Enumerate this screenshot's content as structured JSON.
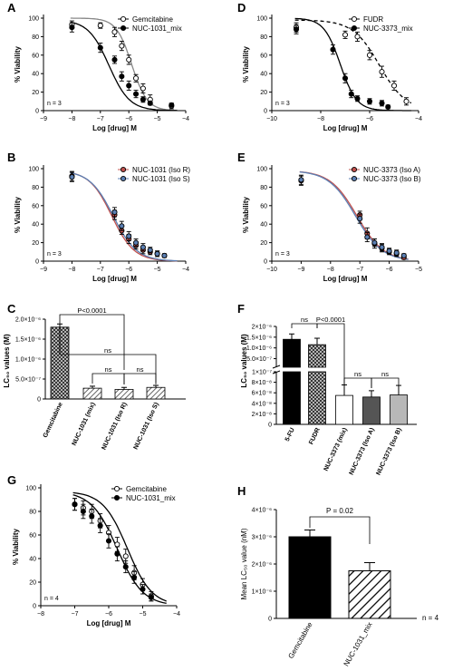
{
  "chart_data": [
    {
      "panel": "A",
      "type": "line",
      "xlabel": "Log [drug] M",
      "ylabel": "% Viability",
      "xlim": [
        -9,
        -4
      ],
      "ylim": [
        0,
        100
      ],
      "xticks": [
        -9,
        -8,
        -7,
        -6,
        -5,
        -4
      ],
      "yticks": [
        0,
        20,
        40,
        60,
        80,
        100
      ],
      "n_label": "n = 3",
      "legend": "top-right",
      "series": [
        {
          "name": "Gemcitabine",
          "marker": "open",
          "x": [
            -8,
            -7,
            -6.5,
            -6.25,
            -6,
            -5.75,
            -5.5,
            -5.25,
            -4.5
          ],
          "y": [
            93,
            92,
            85,
            70,
            55,
            35,
            24,
            12,
            5
          ],
          "err": [
            4,
            3,
            5,
            5,
            5,
            4,
            5,
            5,
            3
          ]
        },
        {
          "name": "NUC-1031_mix",
          "marker": "filled",
          "x": [
            -8,
            -7,
            -6.5,
            -6.25,
            -6,
            -5.75,
            -5.5,
            -5.25,
            -4.5
          ],
          "y": [
            90,
            68,
            55,
            37,
            27,
            18,
            12,
            8,
            6
          ],
          "err": [
            5,
            5,
            4,
            5,
            5,
            4,
            3,
            2,
            2
          ]
        }
      ]
    },
    {
      "panel": "D",
      "type": "line",
      "xlabel": "Log [drug] M",
      "ylabel": "% Viability",
      "xlim": [
        -10,
        -4
      ],
      "ylim": [
        0,
        100
      ],
      "xticks": [
        -10,
        -8,
        -6,
        -4
      ],
      "yticks": [
        0,
        20,
        40,
        60,
        80,
        100
      ],
      "n_label": "n = 3",
      "legend": "top-right",
      "series": [
        {
          "name": "FUDR",
          "marker": "open",
          "x": [
            -9,
            -7,
            -6.5,
            -6,
            -5.5,
            -5,
            -4.5
          ],
          "y": [
            90,
            82,
            80,
            60,
            42,
            27,
            10
          ],
          "err": [
            5,
            4,
            5,
            5,
            6,
            5,
            4
          ]
        },
        {
          "name": "NUC-3373_mix",
          "marker": "filled",
          "x": [
            -9,
            -7.5,
            -7,
            -6.75,
            -6.5,
            -6,
            -5.5,
            -5.25
          ],
          "y": [
            88,
            66,
            35,
            18,
            13,
            10,
            8,
            4
          ],
          "err": [
            5,
            5,
            5,
            4,
            3,
            3,
            3,
            2
          ]
        }
      ]
    },
    {
      "panel": "B",
      "type": "line",
      "xlabel": "Log [drug] M",
      "ylabel": "% Viability",
      "xlim": [
        -9,
        -4
      ],
      "ylim": [
        0,
        100
      ],
      "xticks": [
        -9,
        -8,
        -7,
        -6,
        -5,
        -4
      ],
      "yticks": [
        0,
        20,
        40,
        60,
        80,
        100
      ],
      "n_label": "n = 3",
      "legend": "top-right",
      "series": [
        {
          "name": "NUC-1031 (Iso R)",
          "marker": "red",
          "color": "#c0504d",
          "x": [
            -8,
            -6.5,
            -6.25,
            -6,
            -5.75,
            -5.5,
            -5.25,
            -5,
            -4.75
          ],
          "y": [
            92,
            50,
            33,
            24,
            17,
            12,
            10,
            8,
            6
          ],
          "err": [
            5,
            5,
            4,
            5,
            4,
            4,
            3,
            3,
            2
          ]
        },
        {
          "name": "NUC-1031 (Iso S)",
          "marker": "blue",
          "color": "#5b7fb3",
          "x": [
            -8,
            -6.5,
            -6.25,
            -6,
            -5.75,
            -5.5,
            -5.25,
            -5,
            -4.75
          ],
          "y": [
            91,
            53,
            38,
            27,
            20,
            15,
            12,
            8,
            6
          ],
          "err": [
            5,
            5,
            5,
            5,
            4,
            4,
            3,
            3,
            2
          ]
        }
      ]
    },
    {
      "panel": "E",
      "type": "line",
      "xlabel": "Log [drug] M",
      "ylabel": "% Viability",
      "xlim": [
        -10,
        -5
      ],
      "ylim": [
        0,
        100
      ],
      "xticks": [
        -10,
        -9,
        -8,
        -7,
        -6,
        -5
      ],
      "yticks": [
        0,
        20,
        40,
        60,
        80,
        100
      ],
      "n_label": "n = 3",
      "legend": "top-right",
      "series": [
        {
          "name": "NUC-3373 (Iso A)",
          "marker": "red",
          "color": "#c0504d",
          "x": [
            -9,
            -7,
            -6.75,
            -6.5,
            -6.25,
            -6,
            -5.75,
            -5.5
          ],
          "y": [
            87,
            50,
            30,
            19,
            14,
            10,
            8,
            4
          ],
          "err": [
            5,
            4,
            6,
            5,
            4,
            3,
            3,
            2
          ]
        },
        {
          "name": "NUC-3373 (Iso B)",
          "marker": "blue",
          "color": "#5b7fb3",
          "x": [
            -9,
            -7,
            -6.75,
            -6.5,
            -6.25,
            -6,
            -5.75,
            -5.5
          ],
          "y": [
            88,
            46,
            26,
            20,
            15,
            11,
            9,
            6
          ],
          "err": [
            5,
            5,
            5,
            4,
            4,
            3,
            3,
            2
          ]
        }
      ]
    },
    {
      "panel": "C",
      "type": "bar",
      "ylabel": "LC₅₀ values (M)",
      "categories": [
        "Gemcitabine",
        "NUC-1031 (mix)",
        "NUC-1031 (Iso R)",
        "NUC-1031 (Iso S)"
      ],
      "values": [
        1.8e-06,
        2.7e-07,
        2.4e-07,
        2.9e-07
      ],
      "err": [
        8e-08,
        5e-08,
        5e-08,
        5e-08
      ],
      "patterns": [
        "crosshatch",
        "diagonal",
        "diagonal",
        "diagonal"
      ],
      "ylim": [
        0,
        2e-06
      ],
      "yticks": [
        "0",
        "5.0×10⁻⁷",
        "1.0×10⁻⁶",
        "1.5×10⁻⁶",
        "2.0×10⁻⁶"
      ],
      "annotations": [
        "P<0.0001",
        "ns",
        "ns",
        "ns"
      ]
    },
    {
      "panel": "F",
      "type": "bar",
      "ylabel": "LC₅₀ values (M)",
      "scale": "broken",
      "categories": [
        "5-FU",
        "FUDR",
        "NUC-3373 (mix)",
        "NUC-3373 (Iso A)",
        "NUC-3373 (Iso B)"
      ],
      "values": [
        1.4e-06,
        1.15e-06,
        5.5e-08,
        5.2e-08,
        5.6e-08
      ],
      "err": [
        2.5e-07,
        3e-07,
        2e-08,
        1.2e-08,
        1.8e-08
      ],
      "patterns": [
        "solid-black",
        "crosshatch",
        "white",
        "dark-gray",
        "light-gray"
      ],
      "yticks_upper": [
        "1×10⁻⁷",
        "2×10⁻⁶",
        "1.5×10⁻⁶",
        "1.0×10⁻⁶",
        "5.0×10⁻⁷"
      ],
      "yticks_lower": [
        "1×10⁻⁷",
        "8×10⁻⁸",
        "6×10⁻⁸",
        "4×10⁻⁸",
        "2×10⁻⁸",
        "0"
      ],
      "annotations": [
        "ns",
        "P<0.0001",
        "ns",
        "ns"
      ]
    },
    {
      "panel": "G",
      "type": "line",
      "xlabel": "Log [drug] M",
      "ylabel": "% Viability",
      "xlim": [
        -8,
        -4
      ],
      "ylim": [
        0,
        100
      ],
      "xticks": [
        -8,
        -7,
        -6,
        -5,
        -4
      ],
      "yticks": [
        0,
        20,
        40,
        60,
        80,
        100
      ],
      "n_label": "n = 4",
      "legend": "top-right",
      "series": [
        {
          "name": "Gemcitabine",
          "marker": "open",
          "x": [
            -7,
            -6.75,
            -6.5,
            -6.25,
            -6,
            -5.75,
            -5.5,
            -5.25,
            -5,
            -4.75
          ],
          "y": [
            86,
            83,
            80,
            72,
            62,
            52,
            42,
            28,
            18,
            8
          ],
          "err": [
            5,
            6,
            6,
            6,
            6,
            6,
            6,
            6,
            5,
            4
          ]
        },
        {
          "name": "NUC-1031_mix",
          "marker": "filled",
          "x": [
            -7,
            -6.75,
            -6.5,
            -6.25,
            -6,
            -5.75,
            -5.5,
            -5.25,
            -5,
            -4.75
          ],
          "y": [
            86,
            80,
            76,
            68,
            55,
            44,
            33,
            24,
            14,
            7
          ],
          "err": [
            5,
            6,
            6,
            6,
            6,
            6,
            5,
            5,
            4,
            3
          ]
        }
      ]
    },
    {
      "panel": "H",
      "type": "bar",
      "ylabel": "Mean LC₅₀ value (nM)",
      "categories": [
        "Gemcitabine",
        "NUC-1031_mix"
      ],
      "values": [
        3e-06,
        1.75e-06
      ],
      "err": [
        2.5e-07,
        3e-07
      ],
      "patterns": [
        "solid-black",
        "diagonal"
      ],
      "ylim": [
        0,
        4e-06
      ],
      "yticks": [
        "0",
        "1×10⁻⁶",
        "2×10⁻⁶",
        "3×10⁻⁶",
        "4×10⁻⁶"
      ],
      "annotations": [
        "P = 0.02"
      ],
      "n_label": "n = 4"
    }
  ]
}
